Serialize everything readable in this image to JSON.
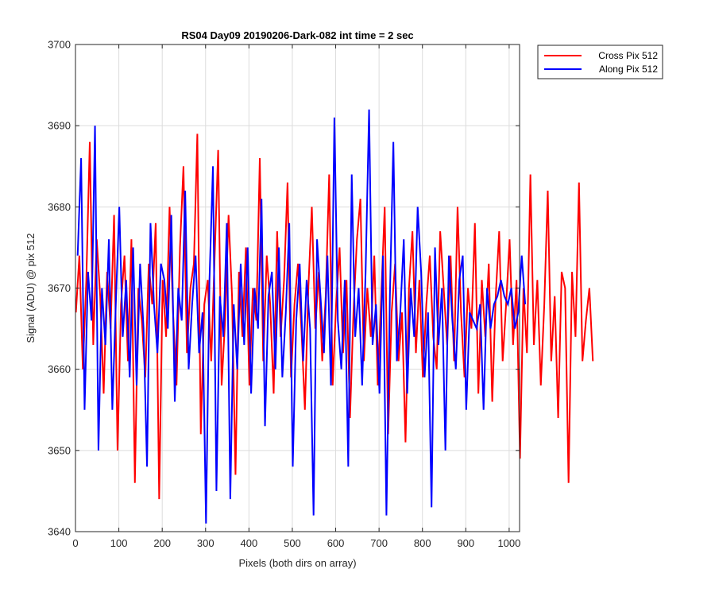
{
  "chart_data": {
    "type": "line",
    "title": "RS04 Day09 20190206-Dark-082 int time = 2 sec",
    "xlabel": "Pixels (both dirs on array)",
    "ylabel": "Signal (ADU) @ pix 512",
    "xlim": [
      0,
      1024
    ],
    "ylim": [
      3640,
      3700
    ],
    "xticks": [
      0,
      100,
      200,
      300,
      400,
      500,
      600,
      700,
      800,
      900,
      1000
    ],
    "yticks": [
      3640,
      3650,
      3660,
      3670,
      3680,
      3690,
      3700
    ],
    "grid": true,
    "legend_position": "outside-top-right",
    "series": [
      {
        "name": "Cross Pix 512",
        "color": "#ff0000",
        "x_start": 1,
        "x_step": 8,
        "values": [
          3667,
          3674,
          3660,
          3671,
          3688,
          3663,
          3676,
          3669,
          3657,
          3672,
          3665,
          3679,
          3650,
          3668,
          3674,
          3661,
          3676,
          3646,
          3670,
          3666,
          3659,
          3673,
          3668,
          3678,
          3644,
          3671,
          3664,
          3680,
          3667,
          3658,
          3675,
          3685,
          3662,
          3670,
          3673,
          3689,
          3652,
          3668,
          3671,
          3661,
          3674,
          3687,
          3658,
          3666,
          3679,
          3669,
          3647,
          3672,
          3664,
          3675,
          3658,
          3670,
          3666,
          3686,
          3661,
          3674,
          3668,
          3657,
          3677,
          3664,
          3671,
          3683,
          3659,
          3668,
          3673,
          3665,
          3655,
          3670,
          3680,
          3665,
          3672,
          3661,
          3669,
          3684,
          3658,
          3668,
          3675,
          3662,
          3671,
          3654,
          3667,
          3676,
          3681,
          3661,
          3670,
          3664,
          3674,
          3658,
          3669,
          3680,
          3652,
          3667,
          3673,
          3661,
          3667,
          3651,
          3670,
          3677,
          3662,
          3671,
          3659,
          3668,
          3674,
          3664,
          3660,
          3677,
          3670,
          3663,
          3674,
          3661,
          3680,
          3667,
          3659,
          3670,
          3665,
          3678,
          3657,
          3671,
          3664,
          3673,
          3656,
          3669,
          3677,
          3661,
          3668,
          3676,
          3663,
          3671,
          3649,
          3670,
          3662,
          3684,
          3663,
          3671,
          3658,
          3668,
          3682,
          3661,
          3669,
          3654,
          3672,
          3670,
          3646,
          3672,
          3664,
          3683,
          3661,
          3666,
          3670,
          3661
        ]
      },
      {
        "name": "Along Pix 512",
        "color": "#0000ff",
        "x_start": 5,
        "x_step": 8,
        "values": [
          3674,
          3686,
          3655,
          3672,
          3666,
          3690,
          3650,
          3670,
          3663,
          3676,
          3655,
          3668,
          3680,
          3664,
          3671,
          3659,
          3675,
          3658,
          3673,
          3665,
          3648,
          3678,
          3668,
          3662,
          3673,
          3671,
          3665,
          3679,
          3656,
          3670,
          3666,
          3682,
          3660,
          3668,
          3674,
          3662,
          3667,
          3641,
          3671,
          3685,
          3645,
          3669,
          3664,
          3678,
          3644,
          3668,
          3660,
          3673,
          3663,
          3675,
          3657,
          3670,
          3665,
          3681,
          3653,
          3669,
          3672,
          3660,
          3675,
          3659,
          3667,
          3678,
          3648,
          3666,
          3673,
          3661,
          3671,
          3665,
          3642,
          3676,
          3669,
          3662,
          3674,
          3658,
          3691,
          3666,
          3660,
          3671,
          3648,
          3684,
          3664,
          3670,
          3658,
          3672,
          3692,
          3663,
          3668,
          3657,
          3674,
          3642,
          3669,
          3688,
          3661,
          3667,
          3676,
          3657,
          3670,
          3664,
          3680,
          3672,
          3659,
          3667,
          3643,
          3675,
          3663,
          3670,
          3650,
          3674,
          3666,
          3660,
          3671,
          3674,
          3655,
          3667,
          3666,
          3665,
          3668,
          3655,
          3670,
          3665,
          3668,
          3669,
          3671,
          3669,
          3668,
          3670,
          3665,
          3667,
          3674,
          3668
        ]
      }
    ]
  }
}
